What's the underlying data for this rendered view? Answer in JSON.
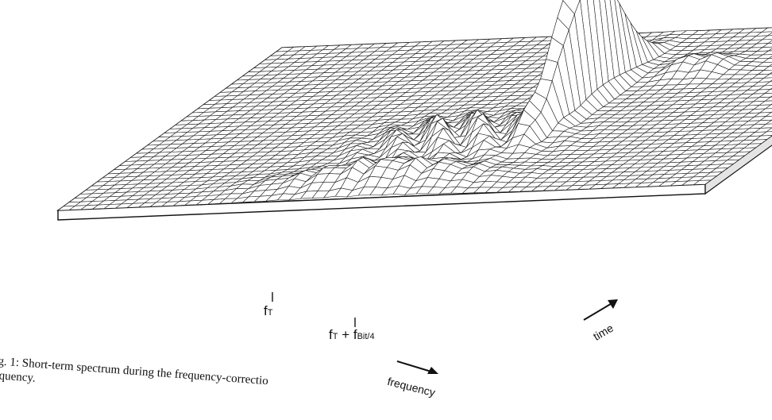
{
  "figure": {
    "axes": {
      "freq_label": "frequency",
      "time_label": "time",
      "tick1_main": "f",
      "tick1_sub": "T",
      "tick2_part1": "f",
      "tick2_part1_sub": "T",
      "tick2_plus": " + f",
      "tick2_part2_sub": "Bit/4"
    },
    "caption": {
      "line1": "ig. 1:  Short-term spectrum during the frequency-correctio",
      "line2": "equency."
    }
  }
}
